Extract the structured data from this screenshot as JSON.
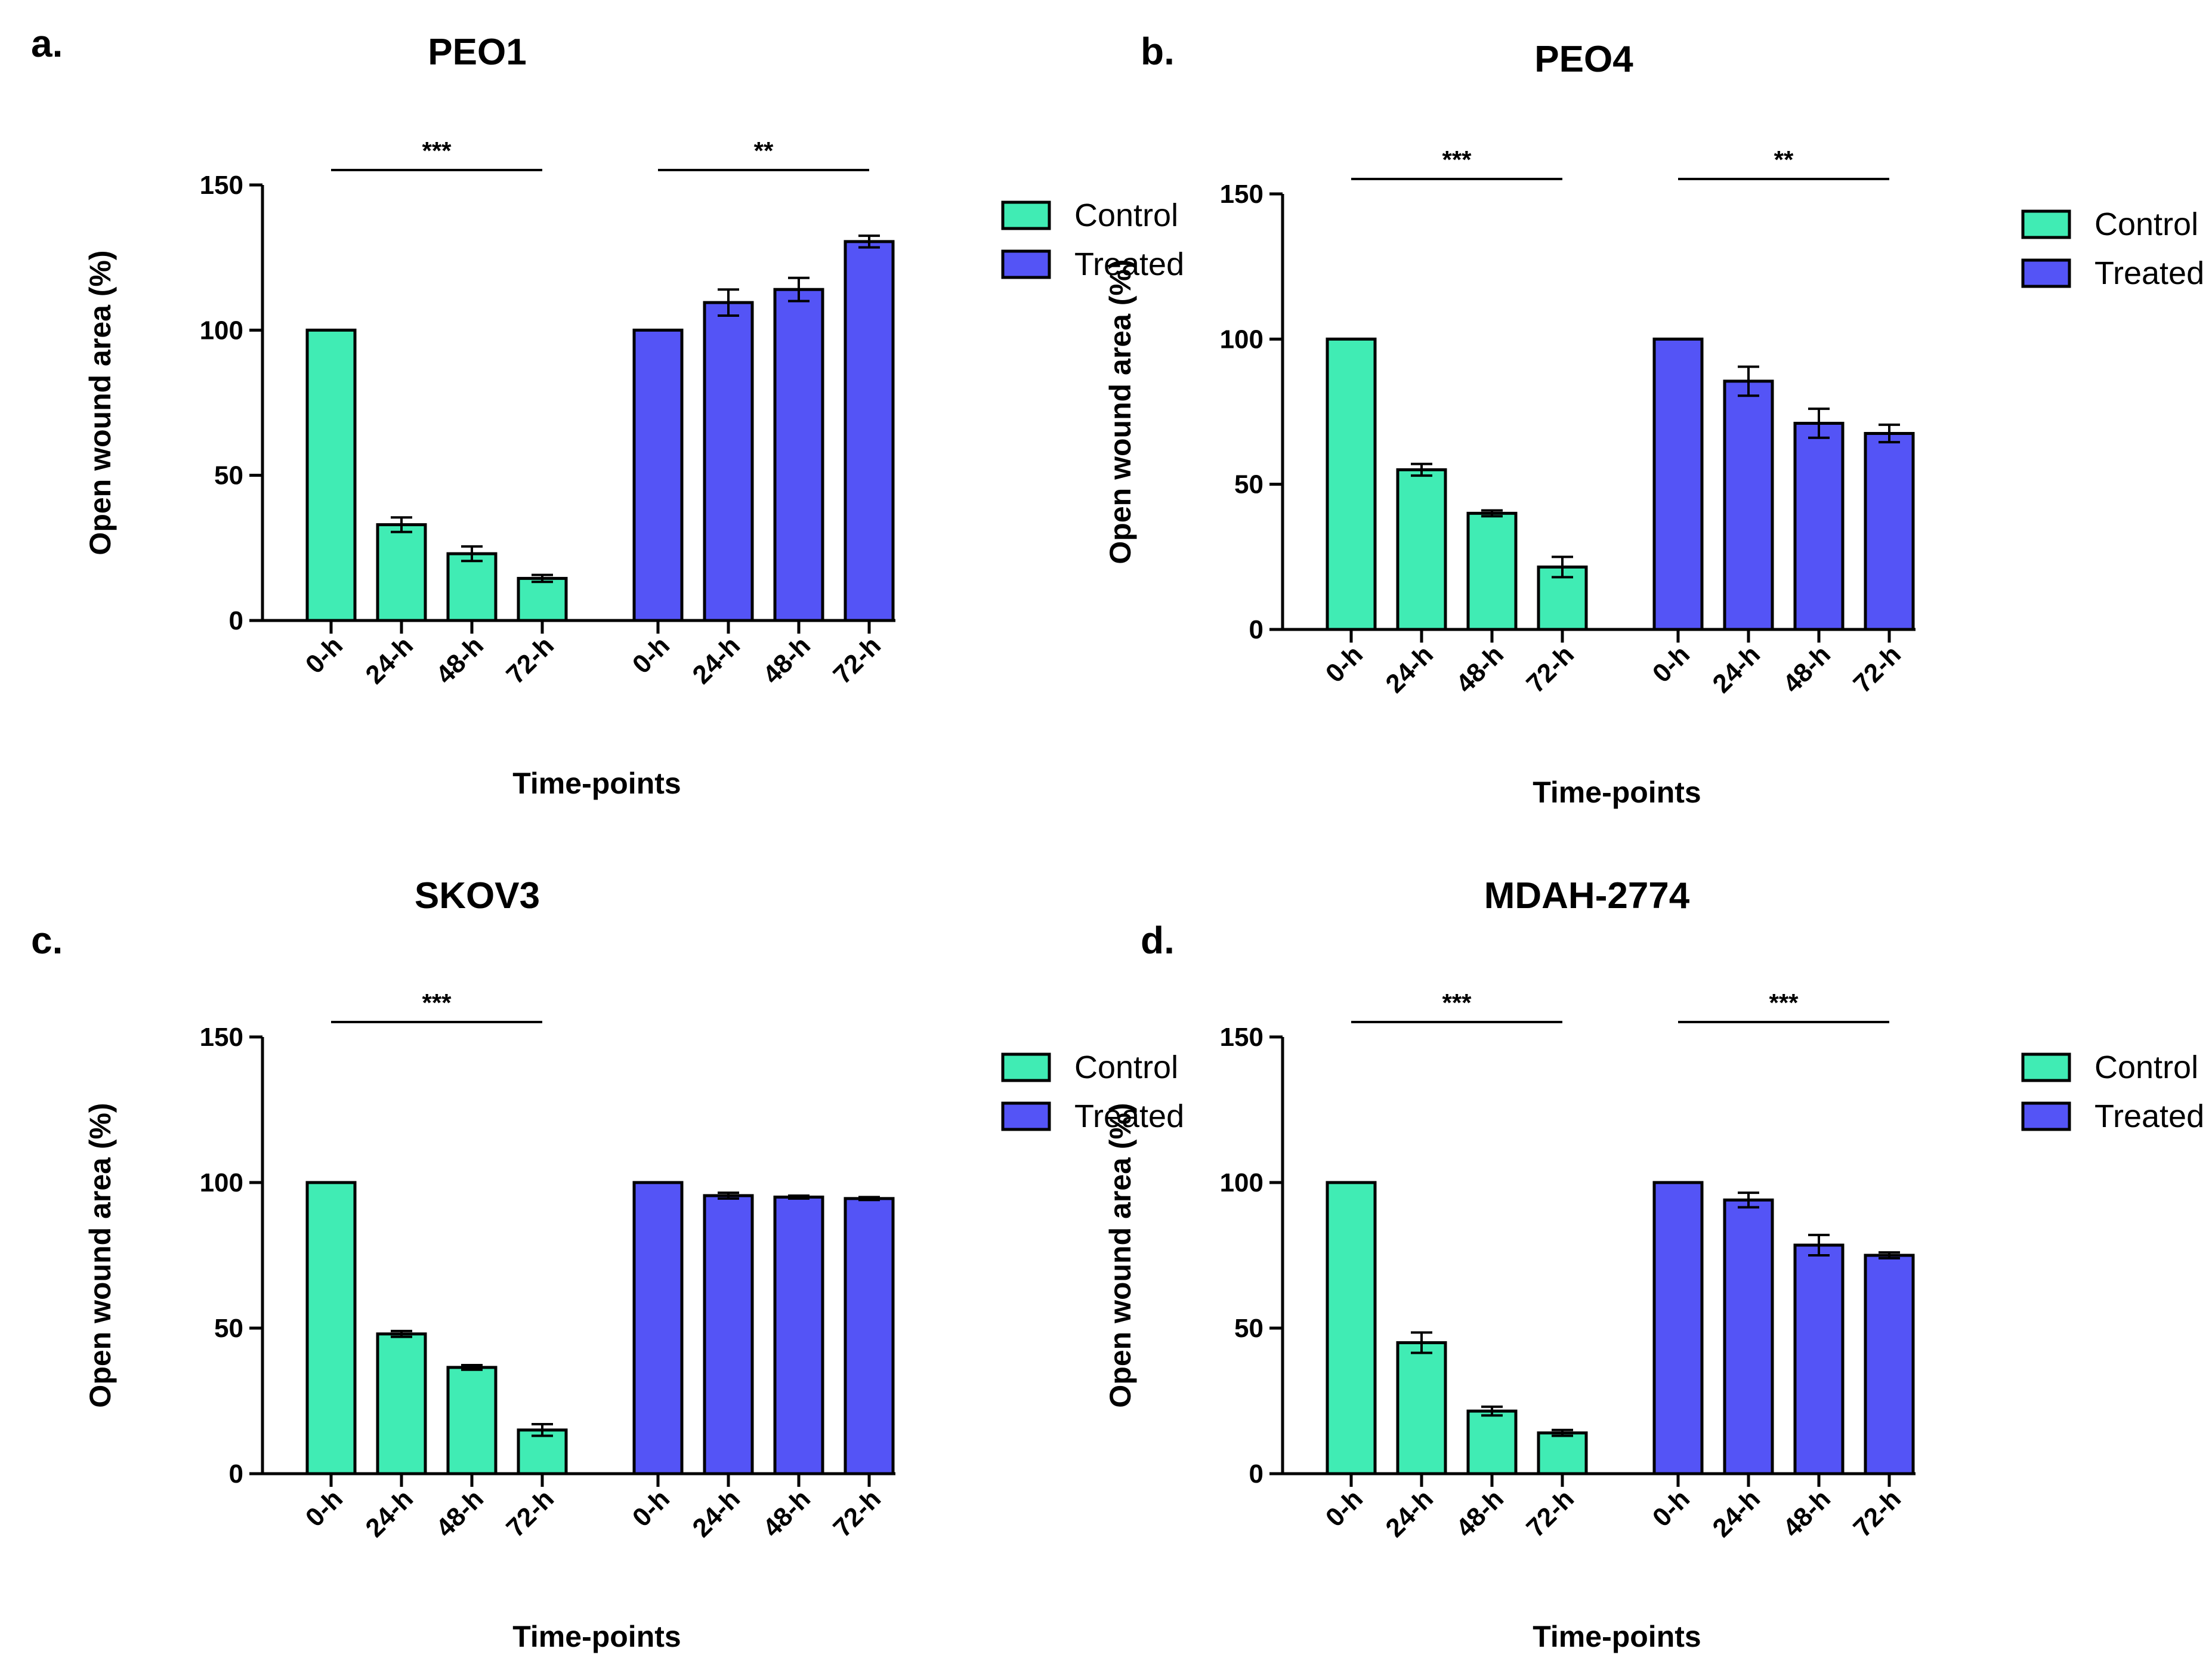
{
  "figure": {
    "colors": {
      "control": "#40ecb4",
      "treated": "#5454f6",
      "stroke": "#000000"
    }
  },
  "chart_data": [
    {
      "type": "bar",
      "panel_label": "a.",
      "title": "PEO1",
      "xlabel": "Time-points",
      "ylabel": "Open wound area (%)",
      "ylim": [
        0,
        150
      ],
      "yticks": [
        "0",
        "50",
        "100",
        "150"
      ],
      "categories": [
        "0-h",
        "24-h",
        "48-h",
        "72-h"
      ],
      "legend": {
        "position": "top-right"
      },
      "series": [
        {
          "name": "Control",
          "values": [
            100,
            33,
            23,
            14.5
          ],
          "errors": [
            0,
            2.5,
            2.5,
            1.2
          ]
        },
        {
          "name": "Treated",
          "values": [
            100,
            109.5,
            114,
            130.5
          ],
          "errors": [
            0,
            4.5,
            4,
            2
          ]
        }
      ],
      "significance": [
        {
          "series": "Control",
          "label": "***"
        },
        {
          "series": "Treated",
          "label": "**"
        }
      ]
    },
    {
      "type": "bar",
      "panel_label": "b.",
      "title": "PEO4",
      "xlabel": "Time-points",
      "ylabel": "Open wound area (%)",
      "ylim": [
        0,
        150
      ],
      "yticks": [
        "0",
        "50",
        "100",
        "150"
      ],
      "categories": [
        "0-h",
        "24-h",
        "48-h",
        "72-h"
      ],
      "legend": {
        "position": "top-right"
      },
      "series": [
        {
          "name": "Control",
          "values": [
            100,
            55,
            40,
            21.5
          ],
          "errors": [
            0,
            2,
            1,
            3.5
          ]
        },
        {
          "name": "Treated",
          "values": [
            100,
            85.5,
            71,
            67.5
          ],
          "errors": [
            0,
            5,
            5,
            3
          ]
        }
      ],
      "significance": [
        {
          "series": "Control",
          "label": "***"
        },
        {
          "series": "Treated",
          "label": "**"
        }
      ]
    },
    {
      "type": "bar",
      "panel_label": "c.",
      "title": "SKOV3",
      "xlabel": "Time-points",
      "ylabel": "Open wound area (%)",
      "ylim": [
        0,
        150
      ],
      "yticks": [
        "0",
        "50",
        "100",
        "150"
      ],
      "categories": [
        "0-h",
        "24-h",
        "48-h",
        "72-h"
      ],
      "legend": {
        "position": "top-right"
      },
      "series": [
        {
          "name": "Control",
          "values": [
            100,
            48,
            36.5,
            15
          ],
          "errors": [
            0,
            1,
            0.8,
            2
          ]
        },
        {
          "name": "Treated",
          "values": [
            100,
            95.5,
            95,
            94.5
          ],
          "errors": [
            0,
            1,
            0.5,
            0.5
          ]
        }
      ],
      "significance": [
        {
          "series": "Control",
          "label": "***"
        }
      ]
    },
    {
      "type": "bar",
      "panel_label": "d.",
      "title": "MDAH-2774",
      "xlabel": "Time-points",
      "ylabel": "Open wound area (%)",
      "ylim": [
        0,
        150
      ],
      "yticks": [
        "0",
        "50",
        "100",
        "150"
      ],
      "categories": [
        "0-h",
        "24-h",
        "48-h",
        "72-h"
      ],
      "legend": {
        "position": "top-right"
      },
      "series": [
        {
          "name": "Control",
          "values": [
            100,
            45,
            21.5,
            14
          ],
          "errors": [
            0,
            3.5,
            1.5,
            1
          ]
        },
        {
          "name": "Treated",
          "values": [
            100,
            94,
            78.5,
            75
          ],
          "errors": [
            0,
            2.5,
            3.5,
            1
          ]
        }
      ],
      "significance": [
        {
          "series": "Control",
          "label": "***"
        },
        {
          "series": "Treated",
          "label": "***"
        }
      ]
    }
  ]
}
